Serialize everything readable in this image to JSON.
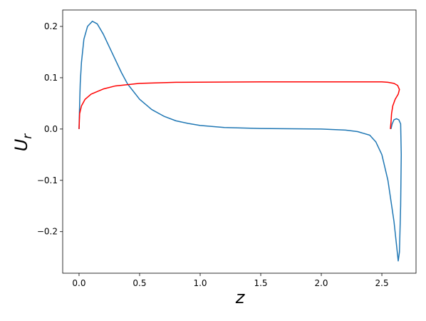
{
  "chart_data": {
    "type": "line",
    "xlabel": "z",
    "ylabel": {
      "text": "U",
      "subscript": "r"
    },
    "xlim": [
      -0.135,
      2.782
    ],
    "ylim": [
      -0.281,
      0.232
    ],
    "xticks": [
      {
        "value": 0,
        "label": "0.0"
      },
      0.5,
      {
        "value": 1,
        "label": "1.0"
      },
      1.5,
      {
        "value": 2,
        "label": "2.0"
      },
      2.5
    ],
    "yticks": [
      {
        "value": -0.2,
        "label": "−0.2"
      },
      {
        "value": -0.1,
        "label": "−0.1"
      },
      {
        "value": 0,
        "label": "0.0"
      },
      0.1,
      0.2
    ],
    "series": [
      {
        "color": "#1f77b4",
        "x": [
          0,
          0.005,
          0.01,
          0.02,
          0.04,
          0.07,
          0.11,
          0.15,
          0.2,
          0.25,
          0.3,
          0.35,
          0.4,
          0.5,
          0.6,
          0.7,
          0.8,
          0.9,
          1.0,
          1.2,
          1.5,
          2.0,
          2.2,
          2.3,
          2.4,
          2.45,
          2.5,
          2.55,
          2.6,
          2.625,
          2.635,
          2.645,
          2.655,
          2.66,
          2.655,
          2.64,
          2.62,
          2.6,
          2.585,
          2.575
        ],
        "values": [
          0,
          0.05,
          0.09,
          0.13,
          0.175,
          0.2,
          0.21,
          0.205,
          0.185,
          0.16,
          0.135,
          0.11,
          0.088,
          0.058,
          0.038,
          0.025,
          0.016,
          0.011,
          0.007,
          0.003,
          0.001,
          0,
          -0.002,
          -0.005,
          -0.012,
          -0.025,
          -0.05,
          -0.1,
          -0.18,
          -0.235,
          -0.257,
          -0.24,
          -0.15,
          -0.05,
          0.01,
          0.018,
          0.02,
          0.018,
          0.01,
          0
        ]
      },
      {
        "color": "#ff0000",
        "x": [
          0,
          0.005,
          0.02,
          0.05,
          0.1,
          0.2,
          0.3,
          0.5,
          0.8,
          1.5,
          2.5,
          2.55,
          2.6,
          2.63,
          2.645,
          2.635,
          2.61,
          2.59,
          2.58,
          2.575,
          2.57
        ],
        "values": [
          0,
          0.03,
          0.045,
          0.058,
          0.068,
          0.078,
          0.084,
          0.089,
          0.091,
          0.092,
          0.092,
          0.091,
          0.089,
          0.085,
          0.077,
          0.068,
          0.058,
          0.045,
          0.03,
          0.012,
          0
        ]
      }
    ]
  }
}
